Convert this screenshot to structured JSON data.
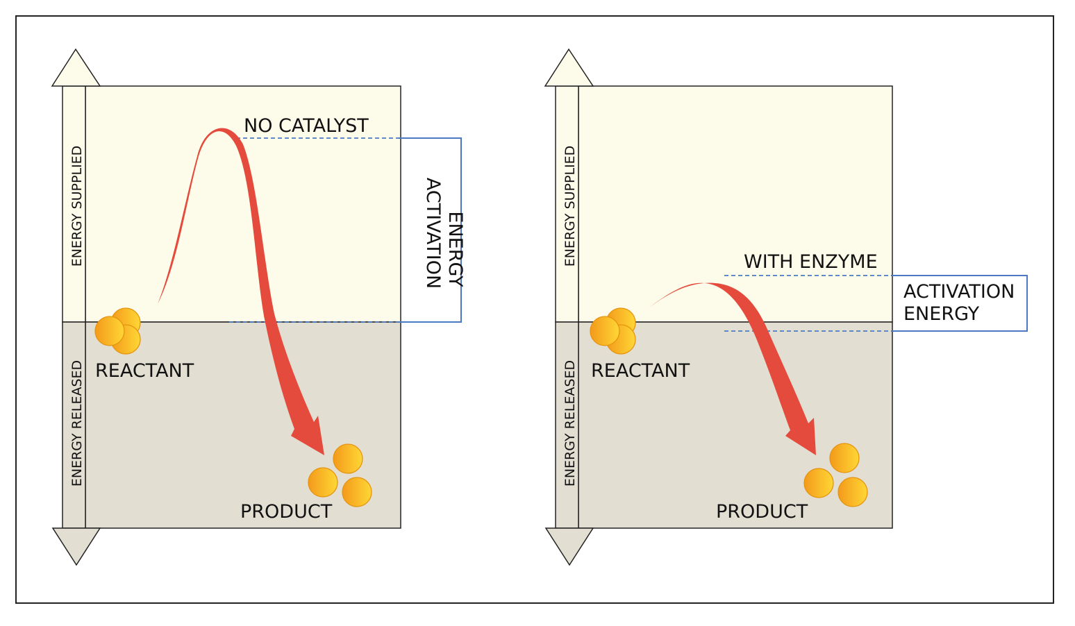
{
  "colors": {
    "supplied_fill": "#fdfbea",
    "released_fill": "#e2ded2",
    "curve": "#e54b3c",
    "bracket": "#4a79c2",
    "molecule_edge": "#e69410",
    "outline": "#222222"
  },
  "left_panel": {
    "axis_top_label": "ENERGY SUPPLIED",
    "axis_bottom_label": "ENERGY RELEASED",
    "level_label": "NO CATALYST",
    "bracket_label_line1": "ACTIVATION",
    "bracket_label_line2": "ENERGY",
    "reactant_label": "REACTANT",
    "product_label": "PRODUCT"
  },
  "right_panel": {
    "axis_top_label": "ENERGY SUPPLIED",
    "axis_bottom_label": "ENERGY RELEASED",
    "level_label": "WITH ENZYME",
    "bracket_label_line1": "ACTIVATION",
    "bracket_label_line2": "ENERGY",
    "reactant_label": "REACTANT",
    "product_label": "PRODUCT"
  }
}
